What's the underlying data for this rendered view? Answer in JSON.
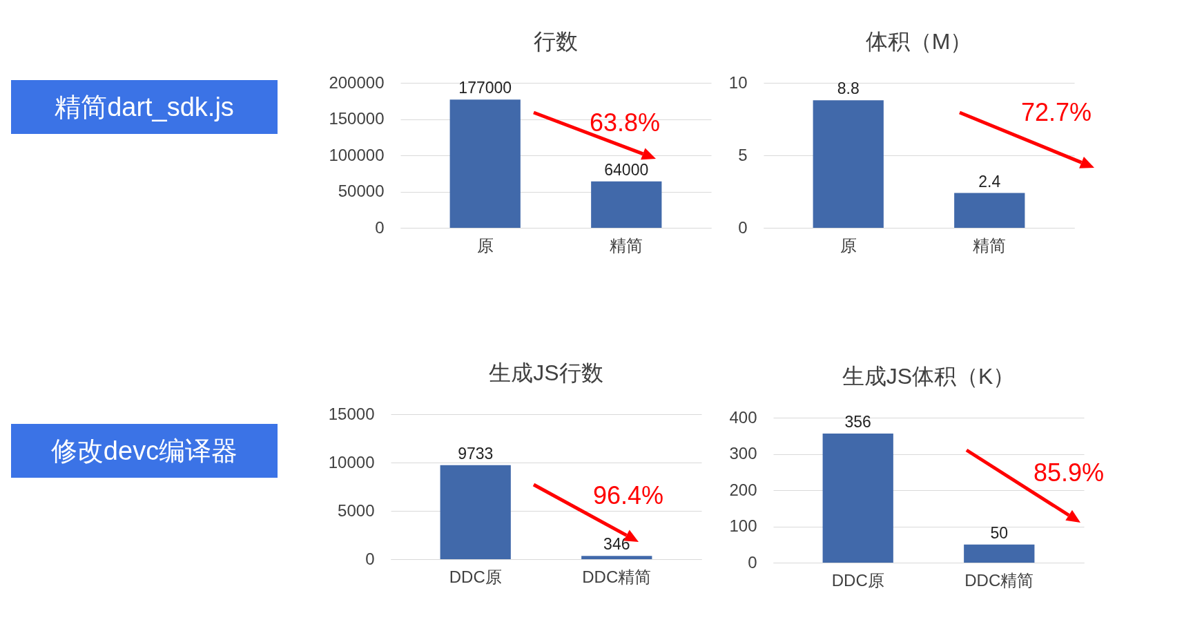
{
  "chart_data": [
    {
      "type": "other",
      "title": "精简dart_sdk.js"
    },
    {
      "type": "bar",
      "title": "行数",
      "categories": [
        "原",
        "精简"
      ],
      "values": [
        177000,
        64000
      ],
      "color": "#4169aa",
      "ylim": [
        0,
        200000
      ],
      "yticks": [
        0,
        50000,
        100000,
        150000,
        200000
      ],
      "grid": "y",
      "data_labels": true,
      "annotations": [
        "63.8%"
      ]
    },
    {
      "type": "bar",
      "title": "体积（M）",
      "categories": [
        "原",
        "精简"
      ],
      "values": [
        8.8,
        2.4
      ],
      "color": "#4169aa",
      "ylim": [
        0,
        10
      ],
      "yticks": [
        0,
        5,
        10
      ],
      "grid": "y",
      "data_labels": true,
      "annotations": [
        "72.7%"
      ]
    },
    {
      "type": "other",
      "title": "修改devc编译器"
    },
    {
      "type": "bar",
      "title": "生成JS行数",
      "categories": [
        "DDC原",
        "DDC精简"
      ],
      "values": [
        9733,
        346
      ],
      "color": "#4169aa",
      "ylim": [
        0,
        15000
      ],
      "yticks": [
        0,
        5000,
        10000,
        15000
      ],
      "grid": "y",
      "data_labels": true,
      "annotations": [
        "96.4%"
      ]
    },
    {
      "type": "bar",
      "title": "生成JS体积（K）",
      "categories": [
        "DDC原",
        "DDC精简"
      ],
      "values": [
        356,
        50
      ],
      "color": "#4169aa",
      "ylim": [
        0,
        400
      ],
      "yticks": [
        0,
        100,
        200,
        300,
        400
      ],
      "grid": "y",
      "data_labels": true,
      "annotations": [
        "85.9%"
      ]
    }
  ]
}
